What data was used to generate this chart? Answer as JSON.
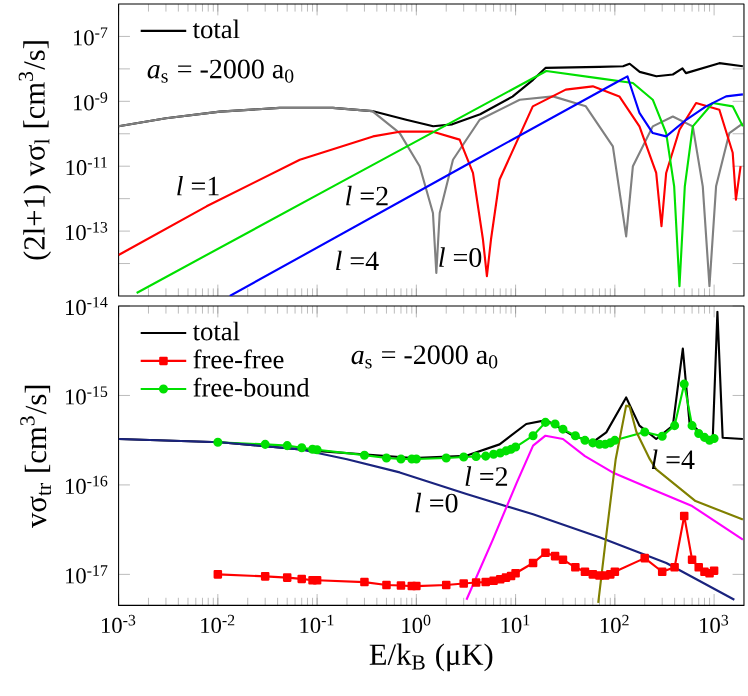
{
  "chart_data": [
    {
      "type": "line",
      "ylabel": "(2l+1) vσ$_{l}$ [cm$^{3}$/s]",
      "legend": "top left",
      "log": "xy",
      "tick_labels": "y",
      "xlim": [
        0.001,
        2000
      ],
      "ylim": [
        1e-15,
        1e-06
      ],
      "xticks": [
        {
          "value": 0.001,
          "label": null
        },
        {
          "value": 0.01,
          "label": null
        },
        {
          "value": 0.1,
          "label": null
        },
        {
          "value": 1,
          "label": null
        },
        {
          "value": 10,
          "label": null
        },
        {
          "value": 100,
          "label": null
        },
        {
          "value": 1000,
          "label": null
        }
      ],
      "yticks": [
        {
          "value": 1e-07,
          "label": "10$^{-7}$"
        },
        {
          "value": 1e-08,
          "label": null
        },
        {
          "value": 1e-09,
          "label": "10$^{-9}$"
        },
        {
          "value": 1e-10,
          "label": null
        },
        {
          "value": 1e-11,
          "label": "10$^{-11}$"
        },
        {
          "value": 1e-12,
          "label": null
        },
        {
          "value": 1e-13,
          "label": "10$^{-13}$"
        },
        {
          "value": 1e-14,
          "label": null
        }
      ],
      "series": [
        {
          "name": "total",
          "color": "#000000",
          "x": [
            0.001,
            0.003,
            0.0105,
            0.042,
            0.144,
            0.36,
            0.79,
            1.48,
            2.3,
            4.4,
            9.3,
            15,
            20,
            70,
            121,
            141,
            178,
            262,
            384,
            480,
            520,
            1130,
            1950
          ],
          "values": [
            1.7e-10,
            3e-10,
            4.8e-10,
            6.3e-10,
            6.3e-10,
            5e-10,
            2.7e-10,
            1.7e-10,
            1.95e-10,
            4e-10,
            1.4e-09,
            4.6e-09,
            1.07e-08,
            1.15e-08,
            1.2e-08,
            1.44e-08,
            8.1e-09,
            5.9e-09,
            6.7e-09,
            1.03e-08,
            7.4e-09,
            1.5e-08,
            1.2e-08
          ]
        },
        {
          "color": "#808080",
          "x": [
            0.001,
            0.003,
            0.0105,
            0.042,
            0.144,
            0.36,
            0.68,
            1.08,
            1.47,
            1.59,
            1.72,
            2.34,
            4.35,
            11,
            23.8,
            51,
            95.5,
            130,
            152,
            241,
            384,
            610,
            769,
            898,
            1047,
            1425,
            1950
          ],
          "values": [
            1.7e-10,
            3e-10,
            4.8e-10,
            6.3e-10,
            6.3e-10,
            5e-10,
            1.05e-10,
            1e-11,
            3.6e-13,
            5.1e-15,
            3.6e-13,
            1.58e-11,
            2.7e-10,
            1.12e-09,
            1.42e-09,
            7e-10,
            4.1e-11,
            6.9e-14,
            1e-11,
            1.69e-10,
            3.4e-10,
            1.69e-10,
            2.4e-12,
            2e-15,
            2.4e-12,
            1.05e-10,
            2.1e-10
          ]
        },
        {
          "color": "#ff0000",
          "x": [
            0.001,
            0.0077,
            0.067,
            0.366,
            0.68,
            1.47,
            2.73,
            3.72,
            4.69,
            5.14,
            5.65,
            6.9,
            14.9,
            32,
            60,
            111,
            177,
            261,
            295,
            329,
            448,
            659,
            1130,
            1540,
            1660,
            1850
          ],
          "values": [
            1.84e-14,
            5.8e-13,
            1.58e-11,
            8.3e-11,
            1.16e-10,
            1.16e-10,
            6.6e-11,
            6.2e-12,
            5.5e-14,
            4.1e-15,
            5.5e-14,
            3.9e-12,
            7e-10,
            2.3e-09,
            2.9e-09,
            1.42e-09,
            1.69e-10,
            6.2e-12,
            1.41e-13,
            6.2e-12,
            1.33e-10,
            8.9e-10,
            5.5e-10,
            2.6e-11,
            9.3e-13,
            1e-11
          ]
        },
        {
          "color": "#00e000",
          "x": [
            0.00152,
            0.145,
            20.4,
            70,
            152,
            241,
            329,
            396,
            448,
            507,
            610,
            970,
            1540,
            1950
          ],
          "values": [
            1.24e-15,
            2.4e-12,
            8.6e-09,
            5.1e-09,
            3.66e-09,
            1.12e-09,
            1.05e-10,
            2.4e-12,
            2e-15,
            2.4e-12,
            1.69e-10,
            8.9e-10,
            7e-10,
            1.69e-10
          ]
        },
        {
          "color": "#0000ff",
          "x": [
            0.0132,
            3.18,
            103,
            134,
            152,
            177,
            241,
            329,
            523,
            830,
            1320,
            1950
          ],
          "values": [
            1e-15,
            1.09e-11,
            3.8e-09,
            5.9e-09,
            1.8e-09,
            4.4e-10,
            1.05e-10,
            8.3e-11,
            2.7e-10,
            7e-10,
            1.42e-09,
            1.64e-09
          ]
        }
      ],
      "annotations": [
        "*a*$_{s}$ = -2000 a$_{0}$",
        "*l* =1",
        "*l* =2",
        "*l* =4",
        "*l* =0"
      ]
    },
    {
      "type": "line",
      "xlabel": "E/k$_{B}$ (μK)",
      "ylabel": "vσ$_{tr}$ [cm$^{3}$/s]",
      "legend": "top left",
      "log": "xy",
      "xlim": [
        0.001,
        2000
      ],
      "ylim": [
        4.5e-18,
        1e-14
      ],
      "xticks": [
        {
          "value": 0.001,
          "label": "10$^{-3}$"
        },
        {
          "value": 0.01,
          "label": "10$^{-2}$"
        },
        {
          "value": 0.1,
          "label": "10$^{-1}$"
        },
        {
          "value": 1,
          "label": "10$^{0}$"
        },
        {
          "value": 10,
          "label": "10$^{1}$"
        },
        {
          "value": 100,
          "label": "10$^{2}$"
        },
        {
          "value": 1000,
          "label": "10$^{3}$"
        }
      ],
      "yticks": [
        {
          "value": 1e-14,
          "label": "10$^{-14}$"
        },
        {
          "value": 1e-15,
          "label": "10$^{-15}$"
        },
        {
          "value": 1e-16,
          "label": "10$^{-16}$"
        },
        {
          "value": 1e-17,
          "label": "10$^{-17}$"
        }
      ],
      "series": [
        {
          "name": "total",
          "color": "#000000",
          "x": [
            0.001,
            0.0105,
            0.106,
            0.925,
            3.18,
            6.9,
            12.8,
            20.4,
            37.8,
            60,
            82,
            130,
            177,
            261,
            384,
            484,
            565,
            830,
            970,
            1080,
            1220,
            1950
          ],
          "values": [
            3.26e-16,
            3e-16,
            2.39e-16,
            2e-16,
            2.12e-16,
            2.84e-16,
            4.8e-16,
            5.3e-16,
            3.56e-16,
            3e-16,
            3.87e-16,
            9.5e-16,
            4.6e-16,
            3.26e-16,
            4.6e-16,
            3.34e-15,
            5e-16,
            3.37e-16,
            3.37e-16,
            8.6e-15,
            3.37e-16,
            3.26e-16
          ]
        },
        {
          "name": "free-free",
          "color": "#ff0000",
          "marker": "square",
          "x": [
            0.01,
            0.03,
            0.05,
            0.07,
            0.09,
            0.1,
            0.3,
            0.5,
            0.7,
            0.9,
            1,
            2,
            3,
            4,
            5,
            6,
            7,
            8,
            9,
            10,
            15,
            20,
            25,
            30,
            40,
            50,
            60,
            70,
            80,
            90,
            100,
            200,
            300,
            400,
            500,
            600,
            700,
            800,
            900,
            1000
          ],
          "values": [
            1e-17,
            9.5e-18,
            9.2e-18,
            8.9e-18,
            8.6e-18,
            8.6e-18,
            8.2e-18,
            7.6e-18,
            7.5e-18,
            7.4e-18,
            7.4e-18,
            7.6e-18,
            7.9e-18,
            8.1e-18,
            8.2e-18,
            8.5e-18,
            8.8e-18,
            9.2e-18,
            9.6e-18,
            1.03e-17,
            1.34e-17,
            1.74e-17,
            1.6e-17,
            1.46e-17,
            1.2e-17,
            1.07e-17,
            1e-17,
            9.7e-18,
            9.7e-18,
            1e-17,
            1.07e-17,
            1.52e-17,
            1.07e-17,
            1.2e-17,
            4.5e-17,
            1.46e-17,
            1.2e-17,
            1.07e-17,
            1.03e-17,
            1.1e-17
          ]
        },
        {
          "name": "free-bound",
          "color": "#00e000",
          "marker": "circle",
          "x": [
            0.01,
            0.03,
            0.05,
            0.07,
            0.09,
            0.1,
            0.3,
            0.5,
            0.7,
            0.9,
            1,
            2,
            3,
            4,
            5,
            6,
            7,
            8,
            9,
            10,
            15,
            20,
            25,
            30,
            40,
            50,
            60,
            70,
            80,
            90,
            100,
            200,
            300,
            400,
            500,
            600,
            700,
            800,
            900,
            1000
          ],
          "values": [
            3e-16,
            2.84e-16,
            2.75e-16,
            2.6e-16,
            2.5e-16,
            2.47e-16,
            2.15e-16,
            2e-16,
            1.95e-16,
            1.95e-16,
            1.95e-16,
            2e-16,
            2.05e-16,
            2.08e-16,
            2.1e-16,
            2.2e-16,
            2.27e-16,
            2.4e-16,
            2.5e-16,
            2.65e-16,
            3.55e-16,
            5e-16,
            4.8e-16,
            4.2e-16,
            3.55e-16,
            3.15e-16,
            2.95e-16,
            2.85e-16,
            2.85e-16,
            2.95e-16,
            3.15e-16,
            3.9e-16,
            3.5e-16,
            4.6e-16,
            1.34e-15,
            4.6e-16,
            3.75e-16,
            3.4e-16,
            3.15e-16,
            3.3e-16
          ]
        },
        {
          "color": "#1a237e",
          "x": [
            0.001,
            0.0105,
            0.067,
            0.2,
            0.68,
            3.2,
            15,
            70,
            330,
            1600
          ],
          "values": [
            3.26e-16,
            3e-16,
            2.5e-16,
            1.94e-16,
            1.38e-16,
            7.9e-17,
            4.7e-17,
            2.6e-17,
            1.34e-17,
            5.2e-18
          ]
        },
        {
          "color": "#ff00ff",
          "x": [
            3.2,
            5.9,
            10.3,
            15,
            20,
            30,
            50,
            95,
            240,
            600,
            1950
          ],
          "values": [
            5.2e-18,
            2.45e-17,
            1.07e-16,
            2.75e-16,
            3.55e-16,
            3.26e-16,
            2.1e-16,
            1.38e-16,
            8.9e-17,
            5.8e-17,
            2.45e-17
          ]
        },
        {
          "color": "#808000",
          "x": [
            68,
            81,
            102,
            130,
            141,
            165,
            225,
            260,
            650,
            1950
          ],
          "values": [
            4.8e-18,
            2.45e-17,
            1.94e-16,
            7.7e-16,
            7.5e-16,
            3.9e-16,
            1.94e-16,
            1.5e-16,
            6.6e-17,
            4.1e-17
          ]
        }
      ],
      "annotations": [
        "*a*$_{s}$ = -2000 a$_{0}$",
        "*l* =0",
        "*l* =2",
        "*l* =4"
      ]
    }
  ]
}
